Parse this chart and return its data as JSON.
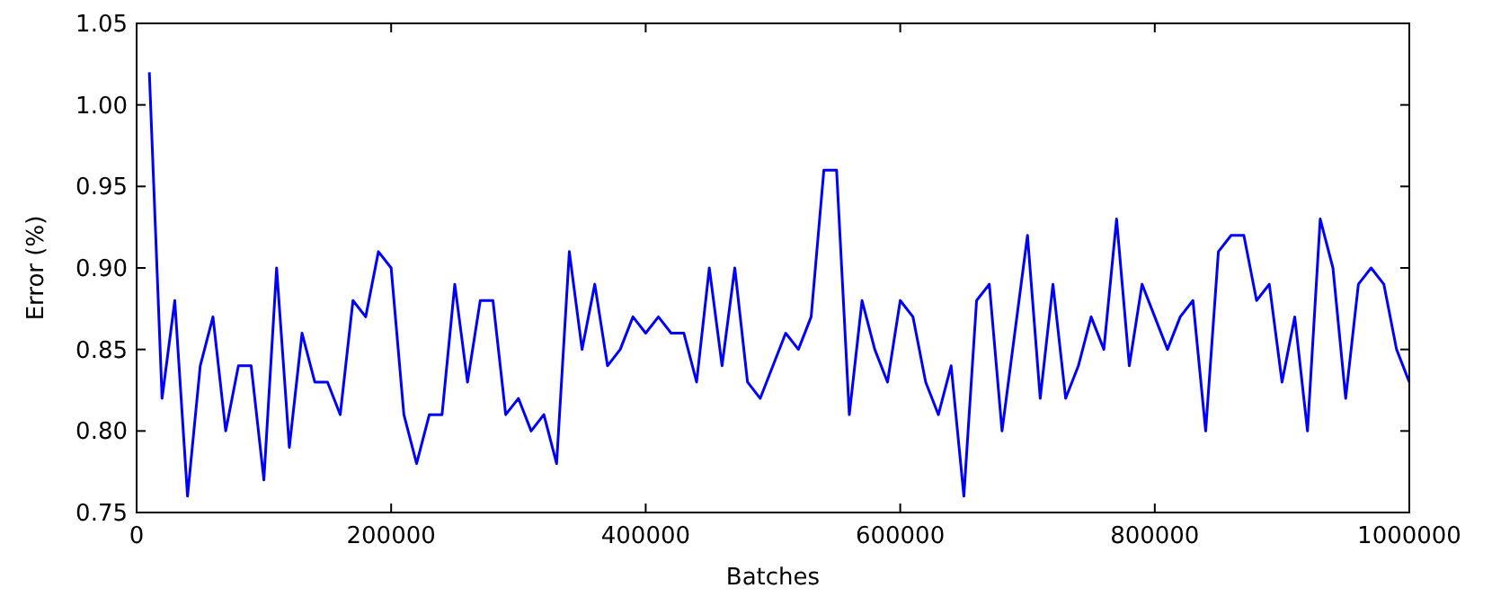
{
  "chart_data": {
    "type": "line",
    "xlabel": "Batches",
    "ylabel": "Error (%)",
    "x": [
      10000,
      20000,
      30000,
      40000,
      50000,
      60000,
      70000,
      80000,
      90000,
      100000,
      110000,
      120000,
      130000,
      140000,
      150000,
      160000,
      170000,
      180000,
      190000,
      200000,
      210000,
      220000,
      230000,
      240000,
      250000,
      260000,
      270000,
      280000,
      290000,
      300000,
      310000,
      320000,
      330000,
      340000,
      350000,
      360000,
      370000,
      380000,
      390000,
      400000,
      410000,
      420000,
      430000,
      440000,
      450000,
      460000,
      470000,
      480000,
      490000,
      500000,
      510000,
      520000,
      530000,
      540000,
      550000,
      560000,
      570000,
      580000,
      590000,
      600000,
      610000,
      620000,
      630000,
      640000,
      650000,
      660000,
      670000,
      680000,
      690000,
      700000,
      710000,
      720000,
      730000,
      740000,
      750000,
      760000,
      770000,
      780000,
      790000,
      800000,
      810000,
      820000,
      830000,
      840000,
      850000,
      860000,
      870000,
      880000,
      890000,
      900000,
      910000,
      920000,
      930000,
      940000,
      950000,
      960000,
      970000,
      980000,
      990000,
      1000000
    ],
    "series": [
      {
        "color": "#0000ff",
        "values": [
          1.02,
          0.82,
          0.88,
          0.76,
          0.84,
          0.87,
          0.8,
          0.84,
          0.84,
          0.77,
          0.9,
          0.79,
          0.86,
          0.83,
          0.83,
          0.81,
          0.88,
          0.87,
          0.91,
          0.9,
          0.81,
          0.78,
          0.81,
          0.81,
          0.89,
          0.83,
          0.88,
          0.88,
          0.81,
          0.82,
          0.8,
          0.81,
          0.78,
          0.91,
          0.85,
          0.89,
          0.84,
          0.85,
          0.87,
          0.86,
          0.87,
          0.86,
          0.86,
          0.83,
          0.9,
          0.84,
          0.9,
          0.83,
          0.82,
          0.84,
          0.86,
          0.85,
          0.87,
          0.96,
          0.96,
          0.81,
          0.88,
          0.85,
          0.83,
          0.88,
          0.87,
          0.83,
          0.81,
          0.84,
          0.76,
          0.88,
          0.89,
          0.8,
          0.86,
          0.92,
          0.82,
          0.89,
          0.82,
          0.84,
          0.87,
          0.85,
          0.93,
          0.84,
          0.89,
          0.87,
          0.85,
          0.87,
          0.88,
          0.8,
          0.91,
          0.92,
          0.92,
          0.88,
          0.89,
          0.83,
          0.87,
          0.8,
          0.93,
          0.9,
          0.82,
          0.89,
          0.9,
          0.89,
          0.85,
          0.83
        ]
      }
    ],
    "xlim": [
      0,
      1000000
    ],
    "xticks": [
      0,
      200000,
      400000,
      600000,
      800000,
      1000000
    ],
    "ylim": [
      0.75,
      1.05
    ],
    "yticks": [
      {
        "value": 0.75,
        "label": "0.75"
      },
      {
        "value": 0.8,
        "label": "0.80"
      },
      {
        "value": 0.85,
        "label": "0.85"
      },
      {
        "value": 0.9,
        "label": "0.90"
      },
      {
        "value": 0.95,
        "label": "0.95"
      },
      {
        "value": 1.0,
        "label": "1.00"
      },
      {
        "value": 1.05,
        "label": "1.05"
      }
    ],
    "grid": false,
    "line_style": "solid",
    "marker": "none"
  }
}
